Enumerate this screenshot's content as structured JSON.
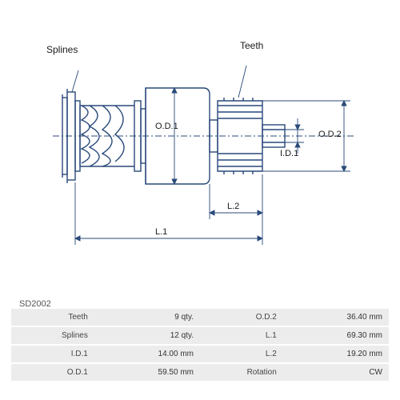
{
  "part_code": "SD2002",
  "annotations": {
    "splines": "Splines",
    "teeth": "Teeth",
    "od1": "O.D.1",
    "od2": "O.D.2",
    "id1": "I.D.1",
    "l1": "L.1",
    "l2": "L.2"
  },
  "spec_rows": [
    {
      "label1": "Teeth",
      "value1": "9 qty.",
      "label2": "O.D.2",
      "value2": "36.40 mm"
    },
    {
      "label1": "Splines",
      "value1": "12 qty.",
      "label2": "L.1",
      "value2": "69.30 mm"
    },
    {
      "label1": "I.D.1",
      "value1": "14.00 mm",
      "label2": "L.2",
      "value2": "19.20 mm"
    },
    {
      "label1": "O.D.1",
      "value1": "59.50 mm",
      "label2": "Rotation",
      "value2": "CW"
    }
  ],
  "style": {
    "stroke": "#29497a",
    "stroke_width": 1.4,
    "thin_stroke": 0.9,
    "row_bg": "#ececec",
    "text_color": "#333333"
  }
}
